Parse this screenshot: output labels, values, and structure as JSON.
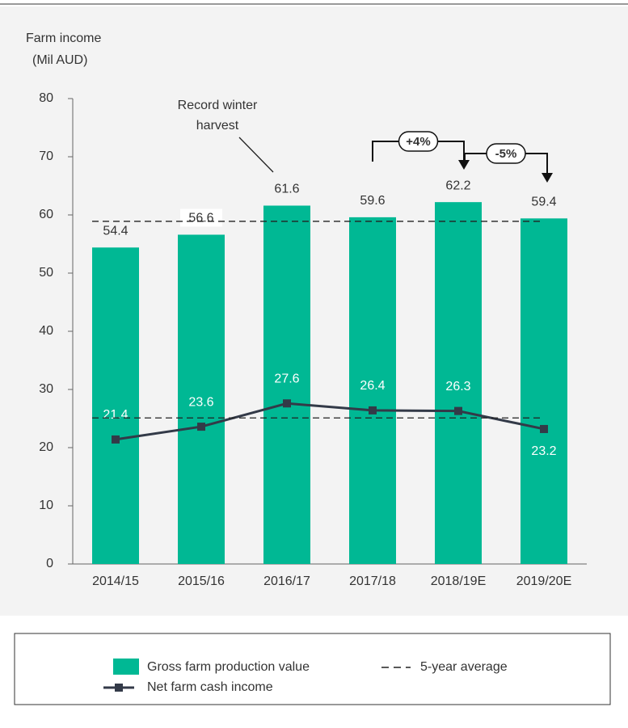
{
  "chart_data": {
    "type": "bar-line",
    "y_label": [
      "Farm income",
      "(Mil AUD)"
    ],
    "categories": [
      "2014/15",
      "2015/16",
      "2016/17",
      "2017/18",
      "2018/19E",
      "2019/20E"
    ],
    "series": [
      {
        "name": "Gross farm production value",
        "type": "bar",
        "color": "#00b894",
        "values": [
          54.4,
          56.6,
          61.6,
          59.6,
          62.2,
          59.4
        ]
      },
      {
        "name": "Net farm cash income",
        "type": "line",
        "color": "#333a48",
        "values": [
          21.4,
          23.6,
          27.6,
          26.4,
          26.3,
          23.2
        ]
      }
    ],
    "average": {
      "name": "5-year average",
      "values": [
        58.9,
        25.1
      ]
    },
    "annotation": [
      "Record winter",
      "harvest"
    ],
    "changes": [
      "+4%",
      "-5%"
    ],
    "ylim": [
      0,
      80
    ],
    "yticks": [
      0,
      10,
      20,
      30,
      40,
      50,
      60,
      70,
      80
    ]
  }
}
